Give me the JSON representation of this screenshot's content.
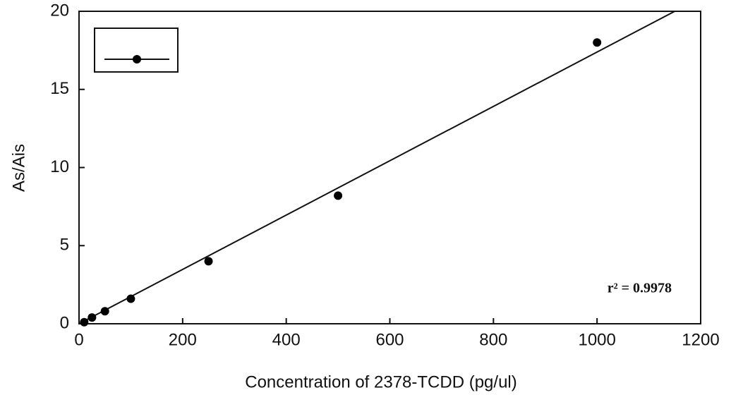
{
  "chart_data": {
    "type": "scatter",
    "xlabel": "Concentration of 2378-TCDD (pg/ul)",
    "ylabel": "As/Ais",
    "x": [
      10,
      25,
      50,
      100,
      250,
      500,
      1000
    ],
    "series": [
      {
        "color": "#000000",
        "values": [
          0.1,
          0.4,
          0.8,
          1.6,
          4.0,
          8.2,
          18.0
        ]
      }
    ],
    "fit": {
      "x": [
        0,
        1150
      ],
      "y": [
        0,
        20
      ]
    },
    "annotation": "r² = 0.9978",
    "xlim": [
      0,
      1200
    ],
    "xticks": [
      0,
      200,
      400,
      600,
      800,
      1000,
      1200
    ],
    "ylim": [
      0,
      20
    ],
    "yticks": [
      0,
      5,
      10,
      15,
      20
    ],
    "legend": "upper left",
    "grid": false
  }
}
